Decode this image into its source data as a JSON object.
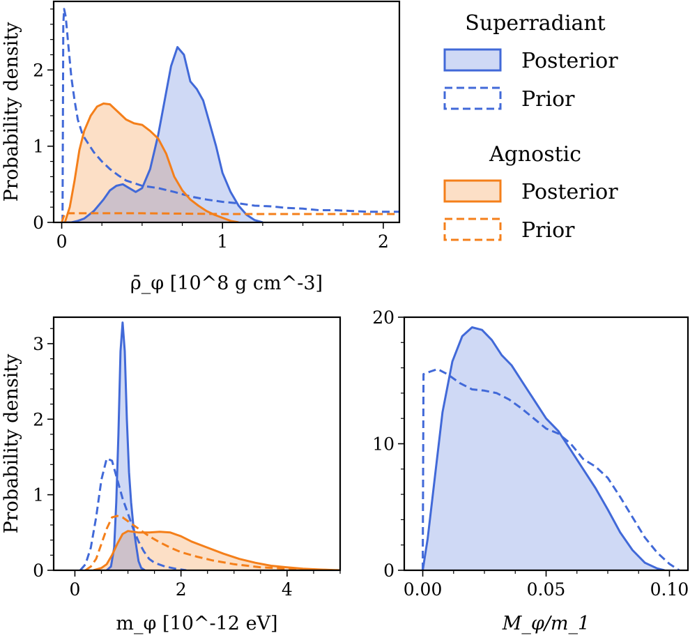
{
  "colors": {
    "superradiant": "#4169d8",
    "agnostic": "#f47f1a",
    "superradiant_fill": "#c9d6f4",
    "agnostic_fill": "#fbdcc2"
  },
  "legend": {
    "groups": [
      {
        "title": "Superradiant",
        "color_key": "superradiant",
        "entries": [
          {
            "label": "Posterior",
            "style": "solid-filled"
          },
          {
            "label": "Prior",
            "style": "dashed"
          }
        ]
      },
      {
        "title": "Agnostic",
        "color_key": "agnostic",
        "entries": [
          {
            "label": "Posterior",
            "style": "solid-filled"
          },
          {
            "label": "Prior",
            "style": "dashed"
          }
        ]
      }
    ]
  },
  "chart_data": [
    {
      "id": "rho",
      "type": "line",
      "title": "",
      "xlabel": "ρ̄_φ [10^8 g cm^-3]",
      "ylabel": "Probability density",
      "xlim": [
        -0.05,
        2.1
      ],
      "ylim": [
        0,
        2.9
      ],
      "xticks": [
        0,
        1,
        2
      ],
      "xtick_labels": [
        "0",
        "1",
        "2"
      ],
      "yticks": [
        0,
        1,
        2
      ],
      "ytick_labels": [
        "0",
        "1",
        "2"
      ],
      "series": [
        {
          "name": "Superradiant Posterior",
          "color_key": "superradiant",
          "style": "solid-filled",
          "x": [
            0.02,
            0.06,
            0.1,
            0.14,
            0.2,
            0.26,
            0.3,
            0.34,
            0.38,
            0.42,
            0.46,
            0.5,
            0.55,
            0.6,
            0.64,
            0.68,
            0.72,
            0.76,
            0.8,
            0.84,
            0.88,
            0.92,
            0.96,
            1.0,
            1.05,
            1.1,
            1.15,
            1.2,
            1.25
          ],
          "y": [
            0.0,
            0.0,
            0.02,
            0.05,
            0.15,
            0.3,
            0.42,
            0.48,
            0.5,
            0.45,
            0.4,
            0.45,
            0.7,
            1.15,
            1.6,
            2.05,
            2.3,
            2.2,
            1.85,
            1.75,
            1.6,
            1.3,
            1.0,
            0.65,
            0.4,
            0.22,
            0.1,
            0.03,
            0.0
          ]
        },
        {
          "name": "Superradiant Prior",
          "color_key": "superradiant",
          "style": "dashed",
          "x": [
            0.005,
            0.01,
            0.015,
            0.025,
            0.04,
            0.06,
            0.08,
            0.1,
            0.13,
            0.16,
            0.2,
            0.25,
            0.3,
            0.35,
            0.4,
            0.5,
            0.6,
            0.7,
            0.8,
            0.9,
            1.0,
            1.1,
            1.2,
            1.3,
            1.4,
            1.5,
            1.6,
            1.7,
            1.8,
            1.9,
            2.0,
            2.1
          ],
          "y": [
            0.0,
            2.6,
            2.8,
            2.7,
            2.35,
            1.9,
            1.6,
            1.35,
            1.15,
            1.05,
            0.92,
            0.8,
            0.7,
            0.62,
            0.55,
            0.48,
            0.45,
            0.4,
            0.34,
            0.3,
            0.27,
            0.25,
            0.22,
            0.21,
            0.19,
            0.18,
            0.16,
            0.16,
            0.15,
            0.14,
            0.14,
            0.14
          ]
        },
        {
          "name": "Agnostic Posterior",
          "color_key": "agnostic",
          "style": "solid-filled",
          "x": [
            0.02,
            0.05,
            0.08,
            0.11,
            0.14,
            0.18,
            0.22,
            0.26,
            0.3,
            0.35,
            0.4,
            0.45,
            0.5,
            0.55,
            0.6,
            0.65,
            0.7,
            0.75,
            0.8,
            0.85,
            0.9,
            0.95,
            1.0,
            1.05,
            1.1
          ],
          "y": [
            0.0,
            0.2,
            0.55,
            0.95,
            1.2,
            1.4,
            1.52,
            1.56,
            1.55,
            1.45,
            1.35,
            1.3,
            1.28,
            1.2,
            1.1,
            0.9,
            0.6,
            0.42,
            0.3,
            0.22,
            0.15,
            0.1,
            0.06,
            0.02,
            0.0
          ]
        },
        {
          "name": "Agnostic Prior",
          "color_key": "agnostic",
          "style": "dashed",
          "x": [
            0.0,
            0.02,
            0.5,
            1.0,
            1.5,
            2.1
          ],
          "y": [
            0.0,
            0.12,
            0.12,
            0.11,
            0.11,
            0.11
          ]
        }
      ]
    },
    {
      "id": "mphi",
      "type": "line",
      "title": "",
      "xlabel": "m_φ [10^-12 eV]",
      "ylabel": "Probability density",
      "xlim": [
        -0.4,
        5.0
      ],
      "ylim": [
        0,
        3.35
      ],
      "xticks": [
        0,
        2,
        4
      ],
      "xtick_labels": [
        "0",
        "2",
        "4"
      ],
      "yticks": [
        0,
        1,
        2,
        3
      ],
      "ytick_labels": [
        "0",
        "1",
        "2",
        "3"
      ],
      "series": [
        {
          "name": "Superradiant Posterior",
          "color_key": "superradiant",
          "style": "solid-filled",
          "x": [
            0.6,
            0.68,
            0.74,
            0.78,
            0.82,
            0.86,
            0.9,
            0.94,
            0.98,
            1.02,
            1.06,
            1.1,
            1.15,
            1.2,
            1.25,
            1.32
          ],
          "y": [
            0.0,
            0.05,
            0.3,
            0.9,
            1.8,
            2.9,
            3.28,
            2.9,
            2.0,
            1.3,
            0.9,
            0.6,
            0.35,
            0.12,
            0.03,
            0.0
          ]
        },
        {
          "name": "Superradiant Prior",
          "color_key": "superradiant",
          "style": "dashed",
          "x": [
            0.1,
            0.2,
            0.3,
            0.4,
            0.5,
            0.6,
            0.7,
            0.8,
            0.9,
            1.0,
            1.1,
            1.2,
            1.3,
            1.4,
            1.5,
            1.7,
            1.9,
            2.1
          ],
          "y": [
            0.0,
            0.08,
            0.3,
            0.7,
            1.2,
            1.48,
            1.45,
            1.2,
            0.95,
            0.75,
            0.55,
            0.38,
            0.25,
            0.15,
            0.1,
            0.05,
            0.02,
            0.0
          ]
        },
        {
          "name": "Agnostic Posterior",
          "color_key": "agnostic",
          "style": "solid-filled",
          "x": [
            0.35,
            0.5,
            0.6,
            0.7,
            0.8,
            0.9,
            1.0,
            1.2,
            1.4,
            1.6,
            1.8,
            2.0,
            2.2,
            2.5,
            2.8,
            3.1,
            3.4,
            3.7,
            4.0,
            4.3,
            4.6,
            5.0
          ],
          "y": [
            0.0,
            0.03,
            0.08,
            0.2,
            0.35,
            0.48,
            0.52,
            0.5,
            0.5,
            0.51,
            0.5,
            0.45,
            0.38,
            0.3,
            0.22,
            0.15,
            0.1,
            0.06,
            0.04,
            0.02,
            0.01,
            0.0
          ]
        },
        {
          "name": "Agnostic Prior",
          "color_key": "agnostic",
          "style": "dashed",
          "x": [
            0.2,
            0.3,
            0.4,
            0.5,
            0.6,
            0.7,
            0.8,
            0.9,
            1.0,
            1.2,
            1.4,
            1.6,
            1.8,
            2.0,
            2.3,
            2.6,
            3.0,
            3.5,
            4.0,
            4.5,
            5.0
          ],
          "y": [
            0.0,
            0.05,
            0.15,
            0.35,
            0.55,
            0.7,
            0.72,
            0.7,
            0.65,
            0.55,
            0.45,
            0.37,
            0.3,
            0.24,
            0.18,
            0.13,
            0.08,
            0.04,
            0.02,
            0.01,
            0.0
          ]
        }
      ]
    },
    {
      "id": "mass-ratio",
      "type": "line",
      "title": "",
      "xlabel": "M_φ/m_1",
      "ylabel": "",
      "xlim": [
        -0.0075,
        0.1075
      ],
      "ylim": [
        0,
        20
      ],
      "xticks": [
        0.0,
        0.05,
        0.1
      ],
      "xtick_labels": [
        "0.00",
        "0.05",
        "0.10"
      ],
      "yticks": [
        0,
        10,
        20
      ],
      "ytick_labels": [
        "0",
        "10",
        "20"
      ],
      "series": [
        {
          "name": "Superradiant Posterior",
          "color_key": "superradiant",
          "style": "solid-filled",
          "x": [
            0.0,
            0.002,
            0.005,
            0.008,
            0.012,
            0.016,
            0.02,
            0.024,
            0.028,
            0.032,
            0.036,
            0.04,
            0.045,
            0.05,
            0.055,
            0.06,
            0.065,
            0.07,
            0.075,
            0.08,
            0.085,
            0.09,
            0.095,
            0.098
          ],
          "y": [
            0.0,
            2.5,
            7.5,
            12.5,
            16.5,
            18.5,
            19.2,
            19.0,
            18.2,
            17.0,
            16.2,
            15.0,
            13.5,
            12.0,
            11.0,
            9.5,
            8.0,
            6.5,
            4.8,
            3.0,
            1.6,
            0.6,
            0.15,
            0.0
          ]
        },
        {
          "name": "Superradiant Prior",
          "color_key": "superradiant",
          "style": "dashed",
          "x": [
            0.0,
            0.0003,
            0.003,
            0.006,
            0.01,
            0.015,
            0.02,
            0.025,
            0.03,
            0.035,
            0.04,
            0.045,
            0.05,
            0.055,
            0.06,
            0.065,
            0.07,
            0.075,
            0.08,
            0.085,
            0.09,
            0.095,
            0.1,
            0.104
          ],
          "y": [
            0.0,
            15.5,
            15.7,
            15.9,
            15.5,
            14.8,
            14.3,
            14.2,
            14.0,
            13.5,
            12.8,
            12.0,
            11.2,
            10.8,
            10.0,
            8.8,
            8.2,
            7.3,
            5.8,
            4.2,
            2.6,
            1.4,
            0.5,
            0.0
          ]
        }
      ]
    }
  ]
}
